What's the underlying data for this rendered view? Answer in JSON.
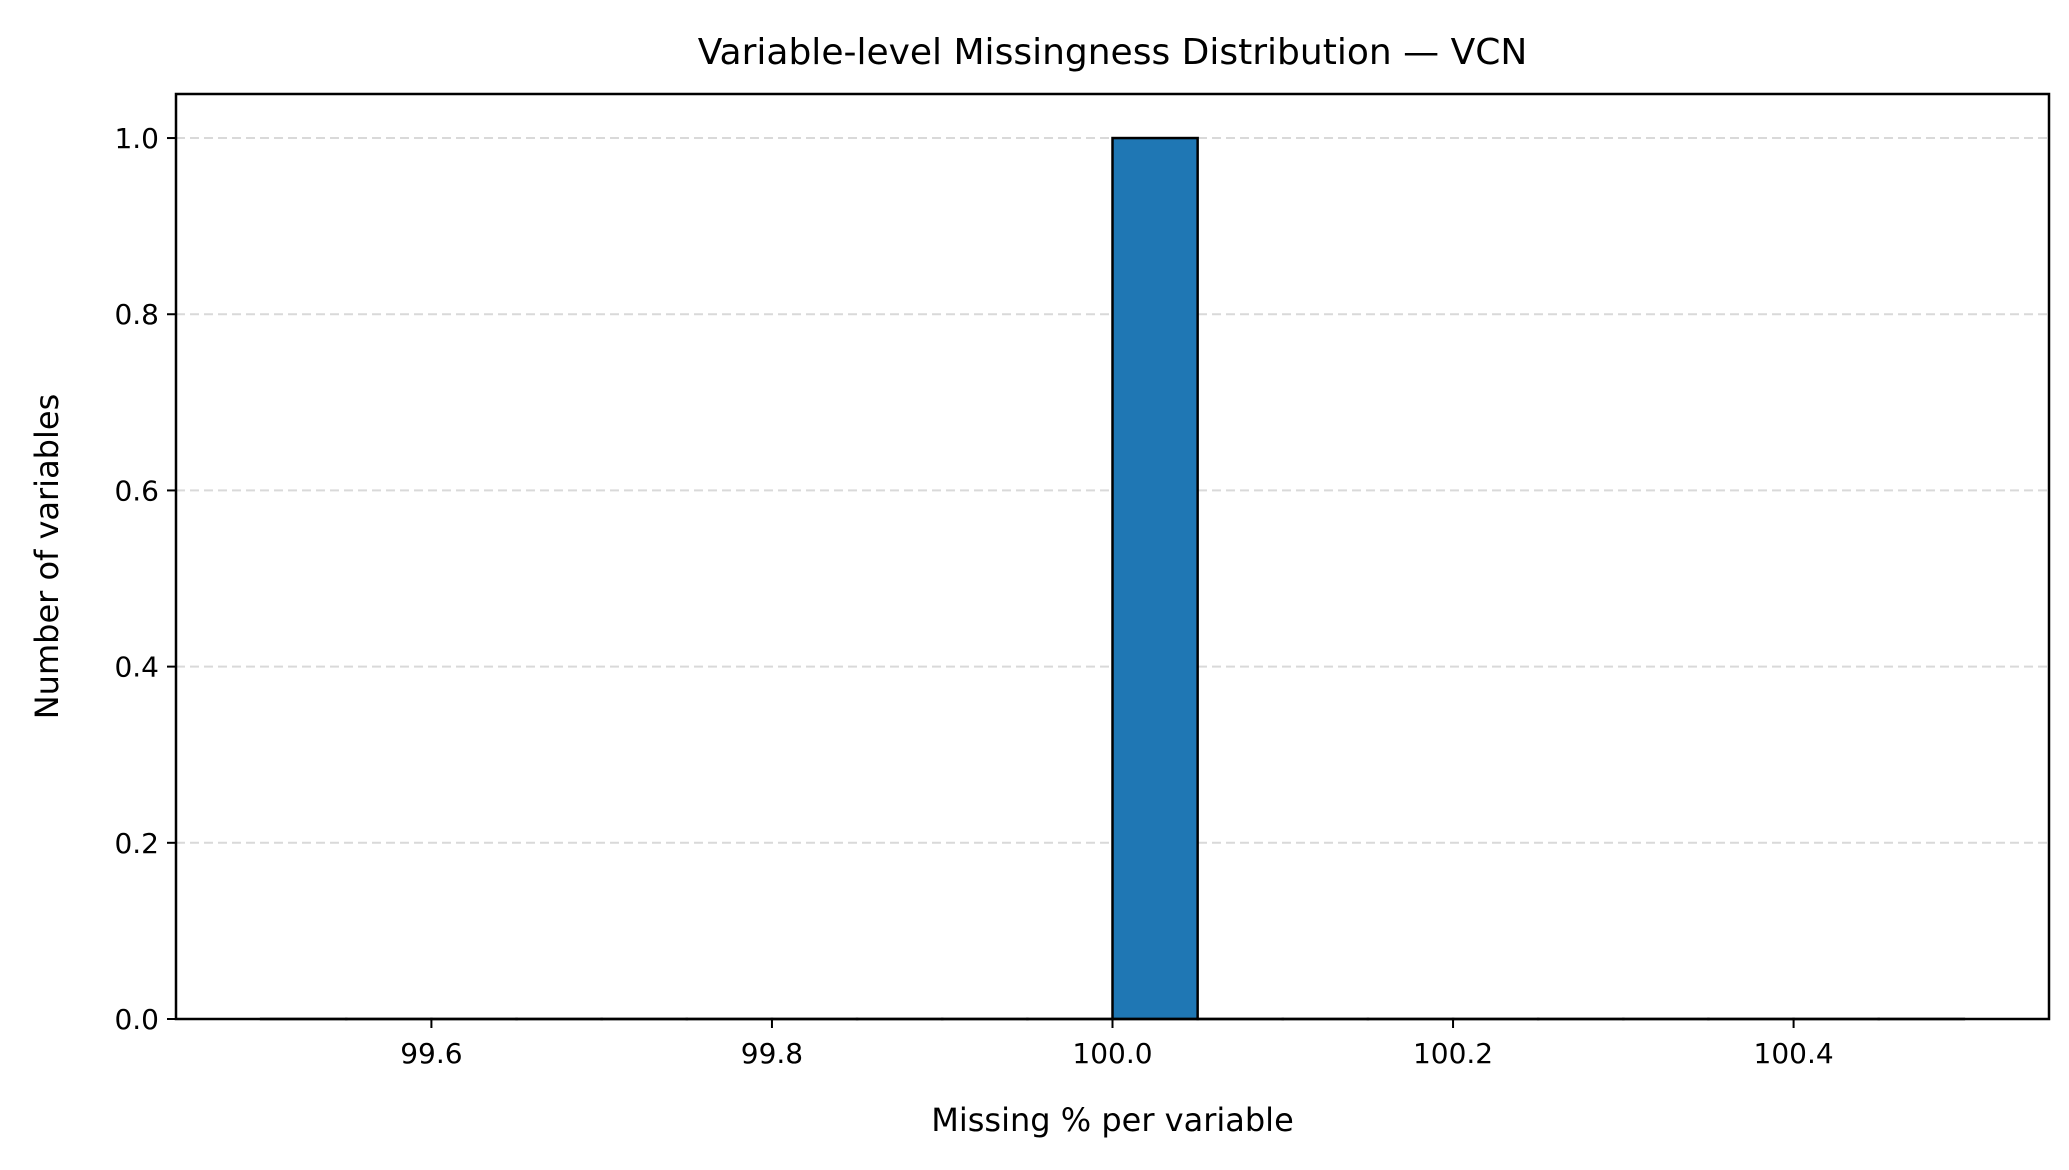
{
  "chart_data": {
    "type": "bar",
    "title": "Variable-level Missingness Distribution — VCN",
    "xlabel": "Missing % per variable",
    "ylabel": "Number of variables",
    "xlim": [
      99.45,
      100.55
    ],
    "ylim": [
      0,
      1.05
    ],
    "x_ticks": [
      99.6,
      99.8,
      100.0,
      100.2,
      100.4
    ],
    "x_tick_labels": [
      "99.6",
      "99.8",
      "100.0",
      "100.2",
      "100.4"
    ],
    "y_ticks": [
      0.0,
      0.2,
      0.4,
      0.6,
      0.8,
      1.0
    ],
    "y_tick_labels": [
      "0.0",
      "0.2",
      "0.4",
      "0.6",
      "0.8",
      "1.0"
    ],
    "grid": "y-dashed",
    "bins": {
      "start": 99.5,
      "end": 100.5,
      "count": 20
    },
    "bars": [
      {
        "x0": 100.0,
        "x1": 100.05,
        "value": 1
      }
    ],
    "colors": {
      "bar_fill": "#1f77b4",
      "bar_edge": "#000000",
      "grid": "#d9d9d9",
      "axes": "#000000"
    }
  }
}
